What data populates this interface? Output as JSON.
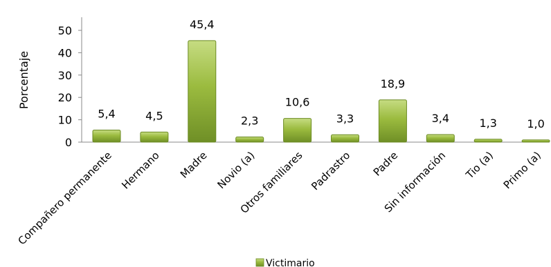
{
  "chart_data": {
    "type": "bar",
    "categories": [
      "Compañero permanente",
      "Hermano",
      "Madre",
      "Novio (a)",
      "Otros familiares",
      "Padrastro",
      "Padre",
      "Sin información",
      "Tio (a)",
      "Primo (a)"
    ],
    "series": [
      {
        "name": "Victimario",
        "values": [
          5.4,
          4.5,
          45.4,
          2.3,
          10.6,
          3.3,
          18.9,
          3.4,
          1.3,
          1.0
        ],
        "labels": [
          "5,4",
          "4,5",
          "45,4",
          "2,3",
          "10,6",
          "3,3",
          "18,9",
          "3,4",
          "1,3",
          "1,0"
        ]
      }
    ],
    "title": "",
    "xlabel": "",
    "ylabel": "Porcentaje",
    "ylim": [
      0,
      50
    ],
    "yticks": [
      0,
      10,
      20,
      30,
      40,
      50
    ],
    "grid": false,
    "legend": "bottom",
    "colors": {
      "bar_top": "#c6dc82",
      "bar_mid": "#9bbb3f",
      "bar_bottom": "#6f8f26",
      "bar_stroke": "#6b8a22"
    }
  }
}
